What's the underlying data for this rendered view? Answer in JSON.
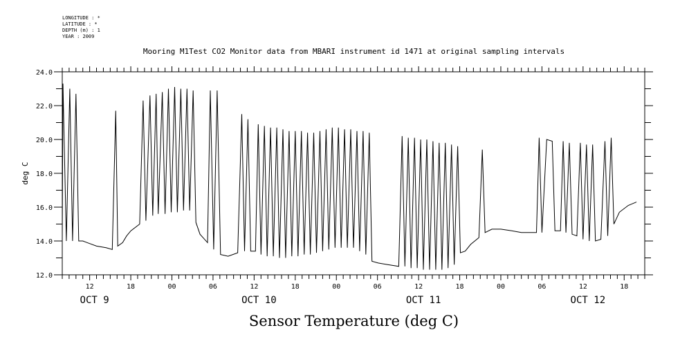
{
  "metadata": {
    "longitude": "LONGITUDE : *",
    "latitude": "LATITUDE : *",
    "depth": "DEPTH (m) : 1",
    "year": "YEAR : 2009"
  },
  "footer_title": "Sensor Temperature (deg C)",
  "colors": {
    "line": "#000000",
    "axis": "#000000",
    "background": "#ffffff"
  },
  "chart_data": {
    "type": "line",
    "title": "Mooring M1Test CO2 Monitor data from MBARI instrument id 1471 at original sampling intervals",
    "xlabel": "",
    "ylabel": "deg C",
    "x_unit": "hours since Oct 9 00:00",
    "xlim": [
      8,
      93
    ],
    "ylim": [
      12.0,
      24.0
    ],
    "grid": false,
    "yticks": [
      "12.0",
      "14.0",
      "16.0",
      "18.0",
      "20.0",
      "22.0",
      "24.0"
    ],
    "xticks": [
      {
        "x": 12,
        "label": "12"
      },
      {
        "x": 18,
        "label": "18"
      },
      {
        "x": 24,
        "label": "00"
      },
      {
        "x": 30,
        "label": "06"
      },
      {
        "x": 36,
        "label": "12"
      },
      {
        "x": 42,
        "label": "18"
      },
      {
        "x": 48,
        "label": "00"
      },
      {
        "x": 54,
        "label": "06"
      },
      {
        "x": 60,
        "label": "12"
      },
      {
        "x": 66,
        "label": "18"
      },
      {
        "x": 72,
        "label": "00"
      },
      {
        "x": 78,
        "label": "06"
      },
      {
        "x": 84,
        "label": "12"
      },
      {
        "x": 90,
        "label": "18"
      }
    ],
    "day_labels": [
      {
        "x": 12,
        "label": "OCT  9"
      },
      {
        "x": 36,
        "label": "OCT 10"
      },
      {
        "x": 60,
        "label": "OCT 11"
      },
      {
        "x": 84,
        "label": "OCT 12"
      }
    ],
    "series": [
      {
        "values": [
          [
            8.0,
            14.1
          ],
          [
            8.1,
            23.3
          ],
          [
            8.6,
            14.0
          ],
          [
            9.1,
            23.0
          ],
          [
            9.5,
            14.0
          ],
          [
            10.0,
            22.7
          ],
          [
            10.4,
            14.0
          ],
          [
            11.0,
            14.0
          ],
          [
            13.0,
            13.7
          ],
          [
            14.4,
            13.6
          ],
          [
            15.3,
            13.5
          ],
          [
            15.8,
            21.7
          ],
          [
            16.1,
            13.7
          ],
          [
            16.8,
            13.9
          ],
          [
            17.4,
            14.3
          ],
          [
            18.0,
            14.6
          ],
          [
            19.3,
            15.0
          ],
          [
            19.8,
            22.3
          ],
          [
            20.2,
            15.2
          ],
          [
            20.8,
            22.6
          ],
          [
            21.2,
            15.5
          ],
          [
            21.7,
            22.7
          ],
          [
            22.0,
            15.6
          ],
          [
            22.6,
            22.8
          ],
          [
            23.0,
            15.6
          ],
          [
            23.5,
            23.0
          ],
          [
            23.9,
            15.7
          ],
          [
            24.4,
            23.1
          ],
          [
            24.8,
            15.7
          ],
          [
            25.3,
            23.0
          ],
          [
            25.7,
            15.8
          ],
          [
            26.2,
            23.0
          ],
          [
            26.6,
            15.8
          ],
          [
            27.1,
            22.9
          ],
          [
            27.5,
            15.1
          ],
          [
            28.1,
            14.4
          ],
          [
            29.2,
            13.9
          ],
          [
            29.6,
            22.9
          ],
          [
            30.1,
            13.5
          ],
          [
            30.6,
            22.9
          ],
          [
            31.1,
            13.2
          ],
          [
            32.2,
            13.1
          ],
          [
            33.6,
            13.3
          ],
          [
            34.2,
            21.5
          ],
          [
            34.6,
            13.4
          ],
          [
            35.1,
            21.2
          ],
          [
            35.5,
            13.4
          ],
          [
            36.2,
            13.4
          ],
          [
            36.6,
            20.9
          ],
          [
            37.0,
            13.2
          ],
          [
            37.5,
            20.8
          ],
          [
            37.9,
            13.1
          ],
          [
            38.4,
            20.7
          ],
          [
            38.8,
            13.1
          ],
          [
            39.3,
            20.7
          ],
          [
            39.7,
            13.0
          ],
          [
            40.2,
            20.6
          ],
          [
            40.6,
            13.0
          ],
          [
            41.1,
            20.5
          ],
          [
            41.5,
            13.1
          ],
          [
            42.0,
            20.5
          ],
          [
            42.4,
            13.1
          ],
          [
            42.9,
            20.5
          ],
          [
            43.3,
            13.2
          ],
          [
            43.8,
            20.4
          ],
          [
            44.2,
            13.2
          ],
          [
            44.7,
            20.4
          ],
          [
            45.1,
            13.3
          ],
          [
            45.6,
            20.5
          ],
          [
            46.0,
            13.4
          ],
          [
            46.5,
            20.6
          ],
          [
            46.9,
            13.5
          ],
          [
            47.4,
            20.7
          ],
          [
            47.8,
            13.6
          ],
          [
            48.3,
            20.7
          ],
          [
            48.7,
            13.6
          ],
          [
            49.2,
            20.6
          ],
          [
            49.6,
            13.6
          ],
          [
            50.1,
            20.6
          ],
          [
            50.5,
            13.6
          ],
          [
            51.0,
            20.5
          ],
          [
            51.4,
            13.4
          ],
          [
            51.9,
            20.5
          ],
          [
            52.3,
            13.2
          ],
          [
            52.8,
            20.4
          ],
          [
            53.2,
            12.8
          ],
          [
            54.1,
            12.7
          ],
          [
            55.5,
            12.6
          ],
          [
            57.1,
            12.5
          ],
          [
            57.6,
            20.2
          ],
          [
            58.0,
            12.5
          ],
          [
            58.5,
            20.1
          ],
          [
            58.9,
            12.4
          ],
          [
            59.4,
            20.1
          ],
          [
            59.8,
            12.4
          ],
          [
            60.3,
            20.0
          ],
          [
            60.7,
            12.3
          ],
          [
            61.2,
            20.0
          ],
          [
            61.6,
            12.3
          ],
          [
            62.1,
            19.9
          ],
          [
            62.5,
            12.3
          ],
          [
            63.0,
            19.8
          ],
          [
            63.4,
            12.3
          ],
          [
            63.9,
            19.8
          ],
          [
            64.3,
            12.4
          ],
          [
            64.8,
            19.7
          ],
          [
            65.2,
            12.6
          ],
          [
            65.7,
            19.6
          ],
          [
            66.1,
            13.3
          ],
          [
            66.8,
            13.4
          ],
          [
            67.6,
            13.8
          ],
          [
            68.8,
            14.2
          ],
          [
            69.3,
            19.4
          ],
          [
            69.7,
            14.5
          ],
          [
            70.7,
            14.7
          ],
          [
            72.0,
            14.7
          ],
          [
            73.6,
            14.6
          ],
          [
            75.0,
            14.5
          ],
          [
            77.2,
            14.5
          ],
          [
            77.6,
            20.1
          ],
          [
            78.0,
            14.5
          ],
          [
            78.7,
            20.0
          ],
          [
            79.5,
            19.9
          ],
          [
            79.9,
            14.6
          ],
          [
            80.7,
            14.6
          ],
          [
            81.1,
            19.9
          ],
          [
            81.5,
            14.5
          ],
          [
            82.0,
            19.8
          ],
          [
            82.4,
            14.4
          ],
          [
            83.1,
            14.3
          ],
          [
            83.6,
            19.8
          ],
          [
            84.0,
            14.1
          ],
          [
            84.5,
            19.7
          ],
          [
            84.9,
            14.0
          ],
          [
            85.4,
            19.7
          ],
          [
            85.8,
            14.0
          ],
          [
            86.6,
            14.1
          ],
          [
            87.2,
            19.9
          ],
          [
            87.6,
            14.3
          ],
          [
            88.1,
            20.1
          ],
          [
            88.5,
            15.0
          ],
          [
            89.3,
            15.7
          ],
          [
            90.6,
            16.1
          ],
          [
            91.8,
            16.3
          ]
        ]
      }
    ]
  }
}
